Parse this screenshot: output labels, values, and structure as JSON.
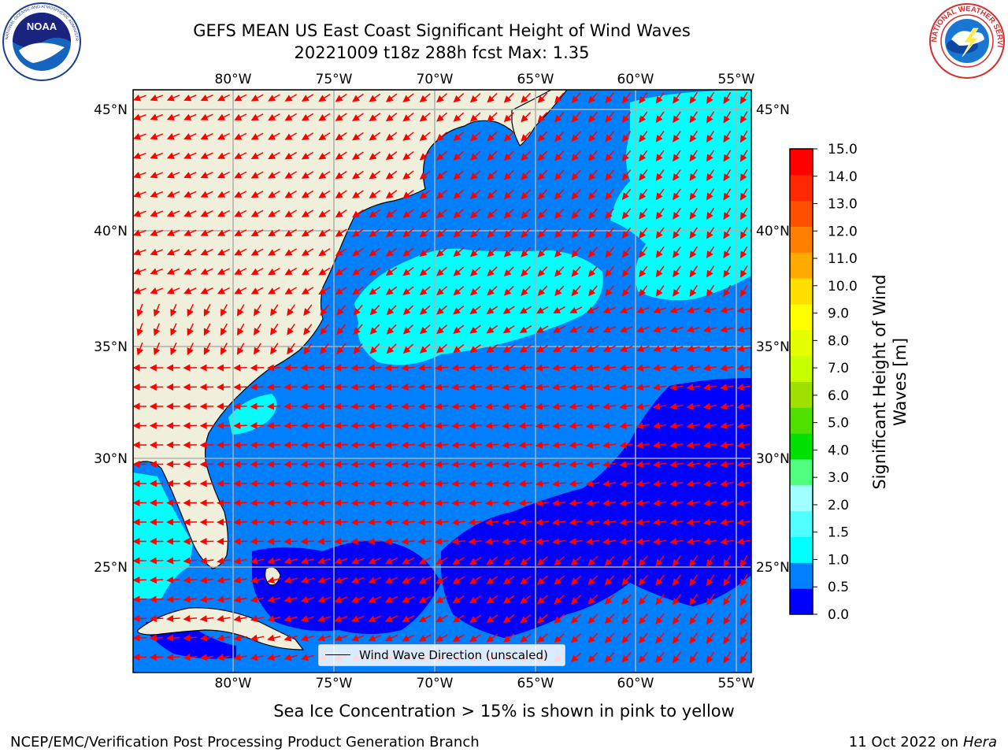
{
  "header": {
    "title_line1": "GEFS MEAN US East Coast Significant Height of Wind Waves",
    "title_line2": "20221009 t18z 288h fcst   Max: 1.35"
  },
  "map": {
    "extent": {
      "lon_min": -85,
      "lon_max": -54.3,
      "lat_min": 20.5,
      "lat_max": 45.8
    },
    "lon_ticks": [
      "80°W",
      "75°W",
      "70°W",
      "65°W",
      "60°W",
      "55°W"
    ],
    "lat_ticks": [
      "45°N",
      "40°N",
      "35°N",
      "30°N",
      "25°N"
    ],
    "land_color": "#efefdc",
    "grid": true
  },
  "legend": {
    "label": "Wind Wave Direction (unscaled)",
    "arrow_color": "#ff0000"
  },
  "colorbar": {
    "label_line1": "Significant Height of Wind",
    "label_line2": "Waves [m]",
    "ticks": [
      "15.0",
      "14.0",
      "13.0",
      "12.0",
      "11.0",
      "10.0",
      "9.0",
      "8.0",
      "7.0",
      "6.0",
      "5.0",
      "4.0",
      "3.0",
      "2.0",
      "1.5",
      "1.0",
      "0.5",
      "0.0"
    ],
    "colors": [
      "#0000ff",
      "#0080ff",
      "#00ffff",
      "#50ffff",
      "#a0ffff",
      "#50ff80",
      "#00e000",
      "#50e000",
      "#a0e000",
      "#c8ff00",
      "#e6ff00",
      "#ffff00",
      "#ffdf00",
      "#ffaa00",
      "#ff8000",
      "#ff5000",
      "#ff2800",
      "#ff0000"
    ]
  },
  "footnote": "Sea Ice Concentration > 15% is shown in pink to yellow",
  "credits": {
    "left": "NCEP/EMC/Verification Post Processing Product Generation Branch",
    "right_prefix": "11 Oct 2022 on ",
    "right_machine": "Hera"
  },
  "logos": {
    "noaa_text": "NOAA",
    "noaa_ring": "NATIONAL OCEANIC AND ATMOSPHERIC ADMINISTRATION · U.S. DEPARTMENT OF COMMERCE",
    "nws_ring": "NATIONAL WEATHER SERVICE"
  }
}
